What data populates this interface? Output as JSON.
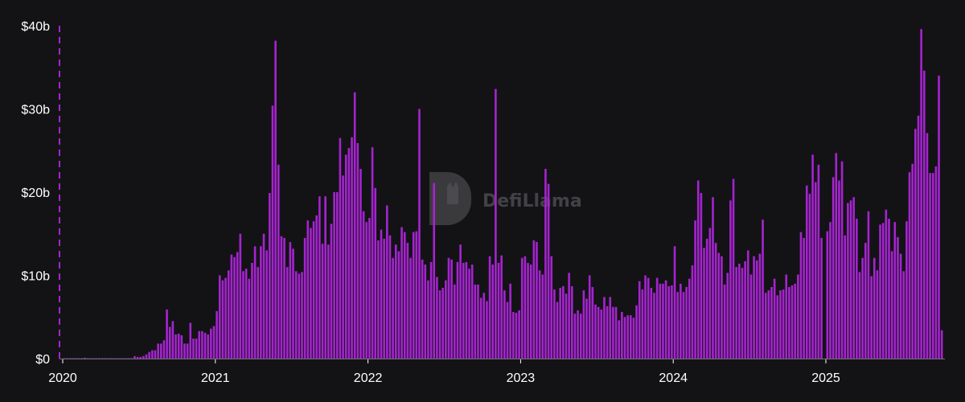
{
  "watermark": {
    "text": "DefiLlama"
  },
  "chart_data": {
    "type": "bar",
    "title": "",
    "xlabel": "",
    "ylabel": "",
    "ylim": [
      0,
      40
    ],
    "y_unit": "billion USD",
    "y_ticks": [
      {
        "value": 0,
        "label": "$0"
      },
      {
        "value": 10,
        "label": "$10b"
      },
      {
        "value": 20,
        "label": "$20b"
      },
      {
        "value": 30,
        "label": "$30b"
      },
      {
        "value": 40,
        "label": "$40b"
      }
    ],
    "x_ticks": [
      "2020",
      "2021",
      "2022",
      "2023",
      "2024",
      "2025"
    ],
    "grid": false,
    "bar_color": "#a524cf",
    "marker_line_color": "#a524cf",
    "interval": "weekly",
    "weekly_values_by_year": [
      {
        "year": "2020",
        "values": [
          0.05,
          0.05,
          0.05,
          0.05,
          0.05,
          0.05,
          0.05,
          0.1,
          0.05,
          0.05,
          0.05,
          0.05,
          0.05,
          0.05,
          0.05,
          0.05,
          0.05,
          0.05,
          0.05,
          0.05,
          0.05,
          0.05,
          0.05,
          0.05,
          0.3,
          0.2,
          0.2,
          0.3,
          0.5,
          0.8,
          1.0,
          1.0,
          1.8,
          1.8,
          2.2,
          5.9,
          3.8,
          4.5,
          2.9,
          3.0,
          2.8,
          1.8,
          1.8,
          4.3,
          2.4,
          2.4,
          3.3,
          3.3,
          3.1,
          2.9,
          3.6,
          3.9
        ]
      },
      {
        "year": "2021",
        "values": [
          5.7,
          10.0,
          9.4,
          9.7,
          10.6,
          12.5,
          12.2,
          12.8,
          15.0,
          10.5,
          10.8,
          9.6,
          11.5,
          13.5,
          11.0,
          13.5,
          15.0,
          13.0,
          19.9,
          30.4,
          38.2,
          23.3,
          14.7,
          14.5,
          11.0,
          14.0,
          13.2,
          10.5,
          10.2,
          10.4,
          14.5,
          16.6,
          15.7,
          16.5,
          17.2,
          19.5,
          13.8,
          19.5,
          13.7,
          16.2,
          20.0,
          20.0,
          26.5,
          22.0,
          24.5,
          25.3,
          26.6,
          32.0,
          25.9,
          22.8,
          17.7,
          16.4
        ]
      },
      {
        "year": "2022",
        "values": [
          16.9,
          25.4,
          20.5,
          14.2,
          15.5,
          14.4,
          18.4,
          14.8,
          12.1,
          13.7,
          12.9,
          15.8,
          15.2,
          13.9,
          12.1,
          15.2,
          15.3,
          30.0,
          11.9,
          11.3,
          9.4,
          11.6,
          21.1,
          9.8,
          8.2,
          8.5,
          9.4,
          12.1,
          11.9,
          8.9,
          11.6,
          13.7,
          11.5,
          11.6,
          10.8,
          11.3,
          8.9,
          8.9,
          7.3,
          7.9,
          6.9,
          12.3,
          11.3,
          32.4,
          11.5,
          12.4,
          8.2,
          6.8,
          9.0,
          5.6,
          5.5,
          5.8
        ]
      },
      {
        "year": "2023",
        "values": [
          12.1,
          12.3,
          11.5,
          11.3,
          14.2,
          14.0,
          10.6,
          10.1,
          22.8,
          21.0,
          12.3,
          8.3,
          6.8,
          8.5,
          8.7,
          7.8,
          10.3,
          8.7,
          5.4,
          5.8,
          5.4,
          8.2,
          7.2,
          10.0,
          8.6,
          6.5,
          6.2,
          5.9,
          7.4,
          6.3,
          7.4,
          6.2,
          6.2,
          4.6,
          5.6,
          5.0,
          5.2,
          5.2,
          4.9,
          6.4,
          9.3,
          8.3,
          10.0,
          9.7,
          8.5,
          7.9,
          9.7,
          9.0,
          9.0,
          9.4,
          8.7,
          8.8
        ]
      },
      {
        "year": "2024",
        "values": [
          13.5,
          8.0,
          9.0,
          8.0,
          8.6,
          9.6,
          11.2,
          16.6,
          21.4,
          19.9,
          13.3,
          14.4,
          15.7,
          19.4,
          13.9,
          12.7,
          12.3,
          8.9,
          10.3,
          19.0,
          21.6,
          11.0,
          11.4,
          10.9,
          11.7,
          13.0,
          10.1,
          12.3,
          11.8,
          12.6,
          16.7,
          7.9,
          8.2,
          8.6,
          9.6,
          7.6,
          8.2,
          8.3,
          10.1,
          8.6,
          8.8,
          9.0,
          10.1,
          15.2,
          14.5,
          20.8,
          19.8,
          24.5,
          21.2,
          23.3,
          14.5
        ]
      },
      {
        "year": "2025",
        "values": [
          15.3,
          16.4,
          21.8,
          24.7,
          21.4,
          23.7,
          14.8,
          18.7,
          19.0,
          19.4,
          16.8,
          10.4,
          12.1,
          13.9,
          17.7,
          9.9,
          12.1,
          10.6,
          16.1,
          16.3,
          17.9,
          16.8,
          12.9,
          16.4,
          14.6,
          12.6,
          10.5,
          16.5,
          22.4,
          23.4,
          27.6,
          29.2,
          39.6,
          34.6,
          27.1,
          22.3,
          22.3,
          23.1,
          34.0,
          3.4
        ]
      }
    ]
  }
}
